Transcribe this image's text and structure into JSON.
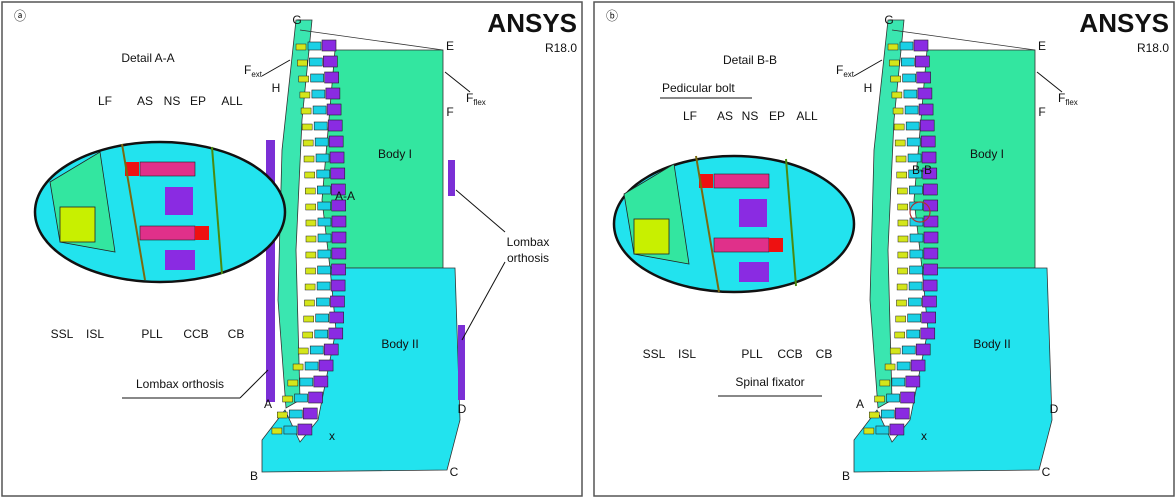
{
  "panels": [
    {
      "labels": {
        "tag": "ⓐ",
        "brand": "ANSYS",
        "version": "R18.0",
        "detail": "Detail A-A",
        "LF": "LF",
        "AS": "AS",
        "NS": "NS",
        "EP": "EP",
        "ALL": "ALL",
        "SSL": "SSL",
        "ISL": "ISL",
        "PLL": "PLL",
        "CCB": "CCB",
        "CB": "CB",
        "orthosis_left": "Lombax orthosis",
        "orthosis_right": [
          "Lombax",
          "orthosis"
        ],
        "G": "G",
        "E": "E",
        "H": "H",
        "F": "F",
        "F_ext": {
          "main": "F",
          "sub": "ext"
        },
        "F_flex": {
          "main": "F",
          "sub": "flex"
        },
        "body1": "Body I",
        "section": "A-A",
        "body2": "Body II",
        "A": "A",
        "B": "B",
        "C": "C",
        "D": "D",
        "x": "x"
      }
    },
    {
      "labels": {
        "tag": "ⓑ",
        "brand": "ANSYS",
        "version": "R18.0",
        "detail": "Detail B-B",
        "bolt": "Pedicular bolt",
        "LF": "LF",
        "AS": "AS",
        "NS": "NS",
        "EP": "EP",
        "ALL": "ALL",
        "SSL": "SSL",
        "ISL": "ISL",
        "PLL": "PLL",
        "CCB": "CCB",
        "CB": "CB",
        "fixator": "Spinal fixator",
        "G": "G",
        "E": "E",
        "H": "H",
        "F": "F",
        "F_ext": {
          "main": "F",
          "sub": "ext"
        },
        "F_flex": {
          "main": "F",
          "sub": "flex"
        },
        "body1": "Body I",
        "section": "B-B",
        "body2": "Body II",
        "A": "A",
        "B": "B",
        "C": "C",
        "D": "D",
        "x": "x"
      }
    }
  ]
}
